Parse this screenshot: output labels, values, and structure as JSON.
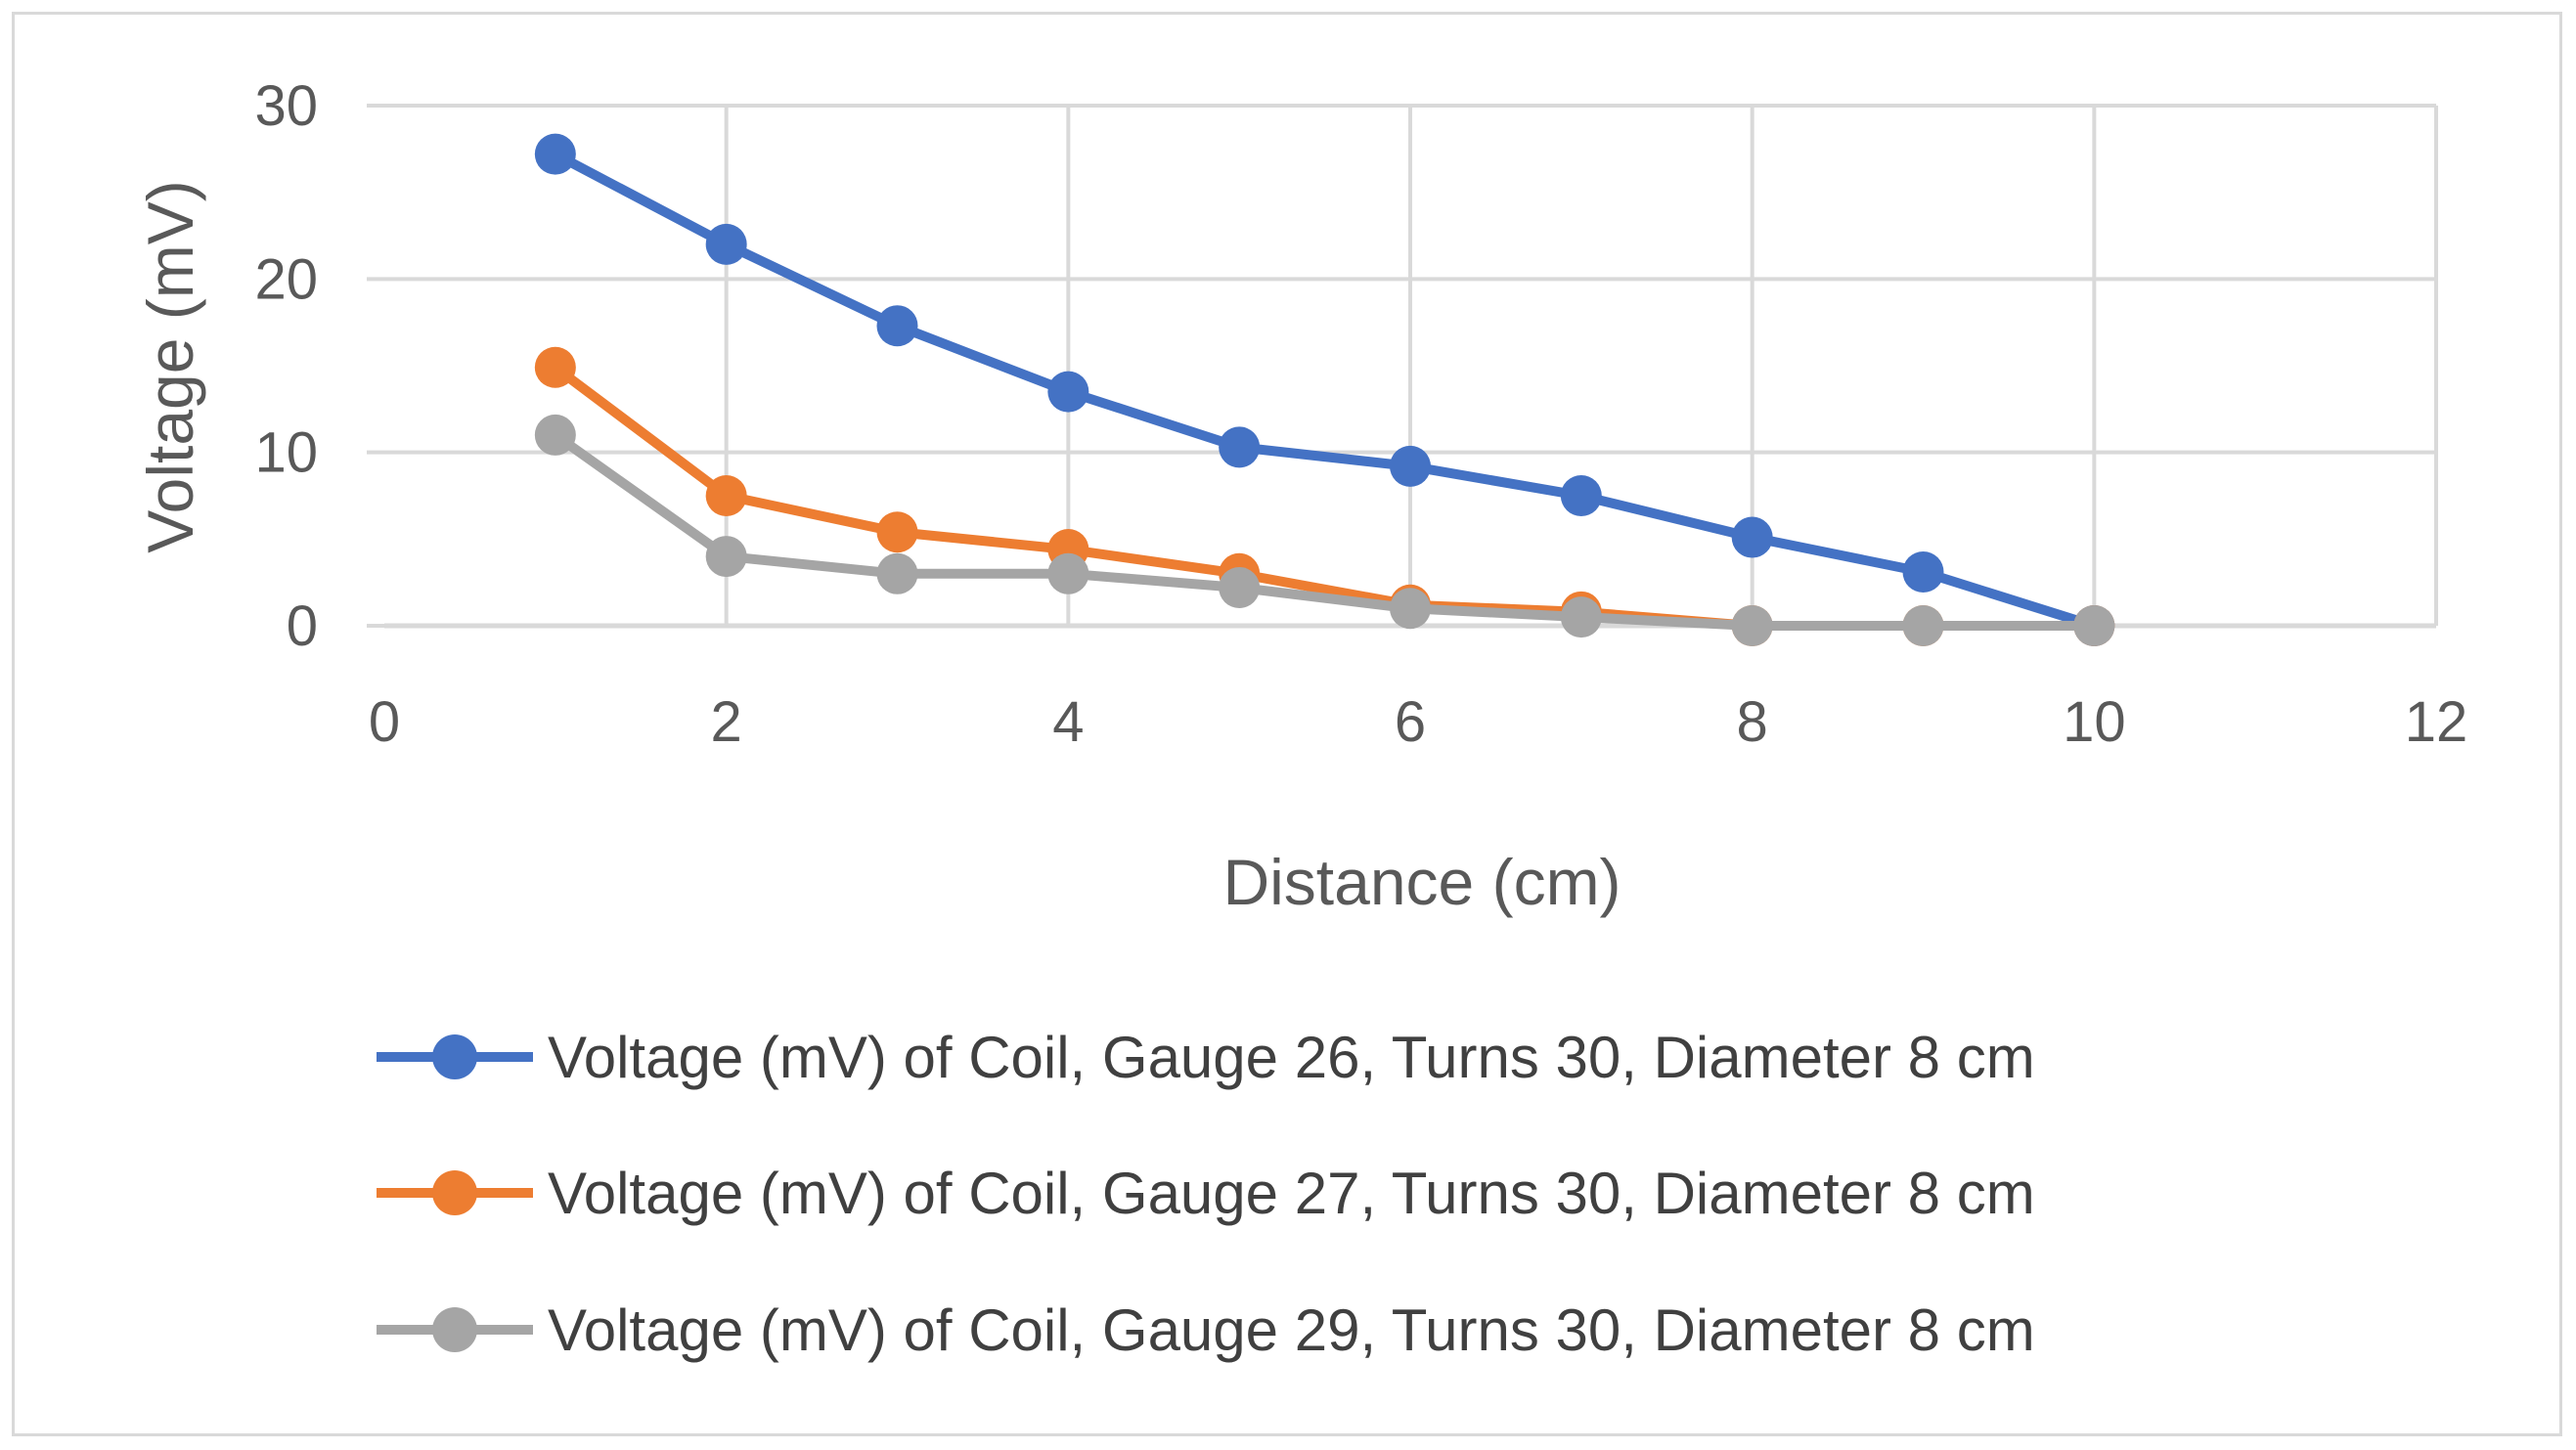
{
  "chart_data": {
    "type": "scatter",
    "title": "",
    "xlabel": "Distance (cm)",
    "ylabel": "Voltage (mV)",
    "xlim": [
      0,
      12
    ],
    "ylim": [
      0,
      30
    ],
    "x_ticks": [
      0,
      2,
      4,
      6,
      8,
      10,
      12
    ],
    "y_ticks": [
      0,
      10,
      20,
      30
    ],
    "x_tick_labels": [
      "0",
      "2",
      "4",
      "6",
      "8",
      "10",
      "12"
    ],
    "y_tick_labels": [
      "0",
      "10",
      "20",
      "30"
    ],
    "grid": true,
    "legend_position": "bottom",
    "series": [
      {
        "name": "Voltage (mV) of Coil, Gauge 26, Turns 30, Diameter 8 cm",
        "color": "#4472c4",
        "x": [
          1,
          2,
          3,
          4,
          5,
          6,
          7,
          8,
          9,
          10
        ],
        "y": [
          27.2,
          22.0,
          17.3,
          13.5,
          10.3,
          9.2,
          7.5,
          5.1,
          3.1,
          0
        ]
      },
      {
        "name": "Voltage (mV) of Coil, Gauge 27, Turns 30, Diameter 8 cm",
        "color": "#ed7d31",
        "x": [
          1,
          2,
          3,
          4,
          5,
          6,
          7,
          8,
          9,
          10
        ],
        "y": [
          14.9,
          7.5,
          5.4,
          4.4,
          3.0,
          1.2,
          0.8,
          0,
          0,
          0
        ]
      },
      {
        "name": "Voltage (mV) of Coil, Gauge 29, Turns 30, Diameter 8 cm",
        "color": "#a5a5a5",
        "x": [
          1,
          2,
          3,
          4,
          5,
          6,
          7,
          8,
          9,
          10
        ],
        "y": [
          11.0,
          4.0,
          3.0,
          3.0,
          2.2,
          1.0,
          0.5,
          0,
          0,
          0
        ]
      }
    ]
  }
}
